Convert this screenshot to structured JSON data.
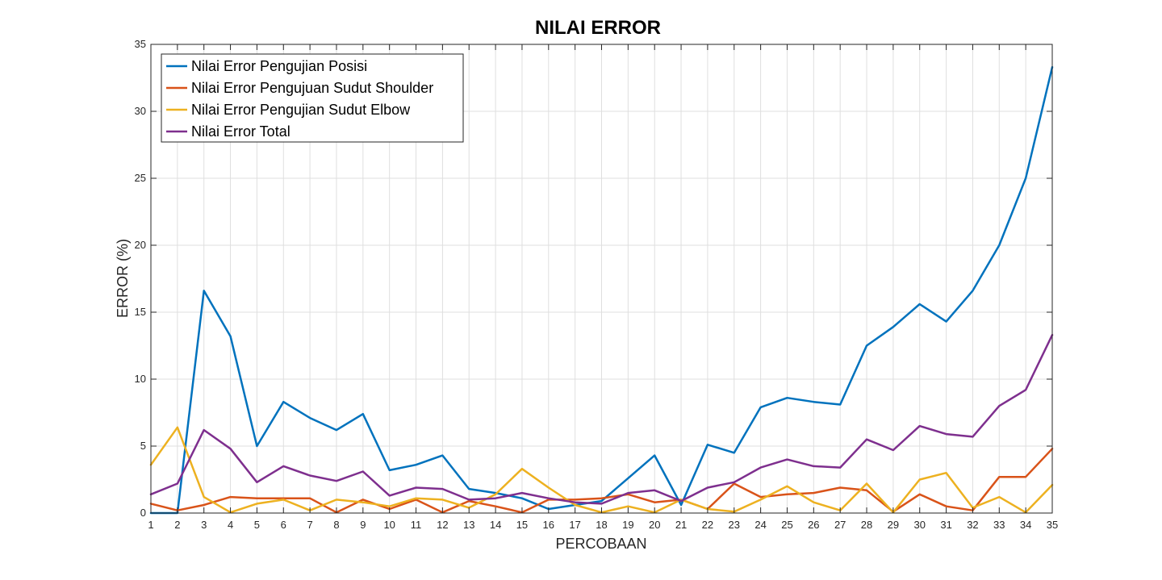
{
  "chart_data": {
    "type": "line",
    "title": "NILAI ERROR",
    "xlabel": "PERCOBAAN",
    "ylabel": "ERROR (%)",
    "xlim": [
      1,
      35
    ],
    "ylim": [
      0,
      35
    ],
    "x_ticks": [
      1,
      2,
      3,
      4,
      5,
      6,
      7,
      8,
      9,
      10,
      11,
      12,
      13,
      14,
      15,
      16,
      17,
      18,
      19,
      20,
      21,
      22,
      23,
      24,
      25,
      26,
      27,
      28,
      29,
      30,
      31,
      32,
      33,
      34,
      35
    ],
    "y_ticks": [
      0,
      5,
      10,
      15,
      20,
      25,
      30,
      35
    ],
    "grid": true,
    "legend_position": "top-left",
    "x": [
      1,
      2,
      3,
      4,
      5,
      6,
      7,
      8,
      9,
      10,
      11,
      12,
      13,
      14,
      15,
      16,
      17,
      18,
      19,
      20,
      21,
      22,
      23,
      24,
      25,
      26,
      27,
      28,
      29,
      30,
      31,
      32,
      33,
      34,
      35
    ],
    "series": [
      {
        "name": "Nilai Error Pengujian Posisi",
        "color": "#0072BD",
        "values": [
          0,
          0,
          16.6,
          13.2,
          5.0,
          8.3,
          7.1,
          6.2,
          7.4,
          3.2,
          3.6,
          4.3,
          1.8,
          1.5,
          1.1,
          0.3,
          0.6,
          0.9,
          2.6,
          4.3,
          0.6,
          5.1,
          4.5,
          7.9,
          8.6,
          8.3,
          8.1,
          12.5,
          13.9,
          15.6,
          14.3,
          16.6,
          20.0,
          25.0,
          33.3
        ]
      },
      {
        "name": "Nilai Error Pengujuan Sudut Shoulder",
        "color": "#D95319",
        "values": [
          0.7,
          0.2,
          0.6,
          1.2,
          1.1,
          1.1,
          1.1,
          0.05,
          1.0,
          0.3,
          1.0,
          0.05,
          0.9,
          0.5,
          0.05,
          1.0,
          1.0,
          1.1,
          1.4,
          0.8,
          1.0,
          0.3,
          2.2,
          1.2,
          1.4,
          1.5,
          1.9,
          1.7,
          0.1,
          1.4,
          0.5,
          0.2,
          2.7,
          2.7,
          4.8
        ]
      },
      {
        "name": "Nilai Error Pengujian Sudut Elbow",
        "color": "#EDB120",
        "values": [
          3.6,
          6.4,
          1.2,
          0.05,
          0.7,
          1.0,
          0.2,
          1.0,
          0.8,
          0.5,
          1.1,
          1.0,
          0.4,
          1.4,
          3.3,
          1.9,
          0.6,
          0.05,
          0.5,
          0.05,
          1.0,
          0.3,
          0.1,
          1.0,
          2.0,
          0.8,
          0.2,
          2.2,
          0.05,
          2.5,
          3.0,
          0.4,
          1.2,
          0.05,
          2.1
        ]
      },
      {
        "name": "Nilai Error Total",
        "color": "#7E2F8E",
        "values": [
          1.4,
          2.2,
          6.2,
          4.8,
          2.3,
          3.5,
          2.8,
          2.4,
          3.1,
          1.3,
          1.9,
          1.8,
          1.0,
          1.1,
          1.5,
          1.1,
          0.8,
          0.7,
          1.5,
          1.7,
          0.9,
          1.9,
          2.3,
          3.4,
          4.0,
          3.5,
          3.4,
          5.5,
          4.7,
          6.5,
          5.9,
          5.7,
          8.0,
          9.2,
          13.3
        ]
      }
    ],
    "colors": {
      "axis": "#262626",
      "grid": "#dfdfdf",
      "background": "#ffffff"
    }
  }
}
